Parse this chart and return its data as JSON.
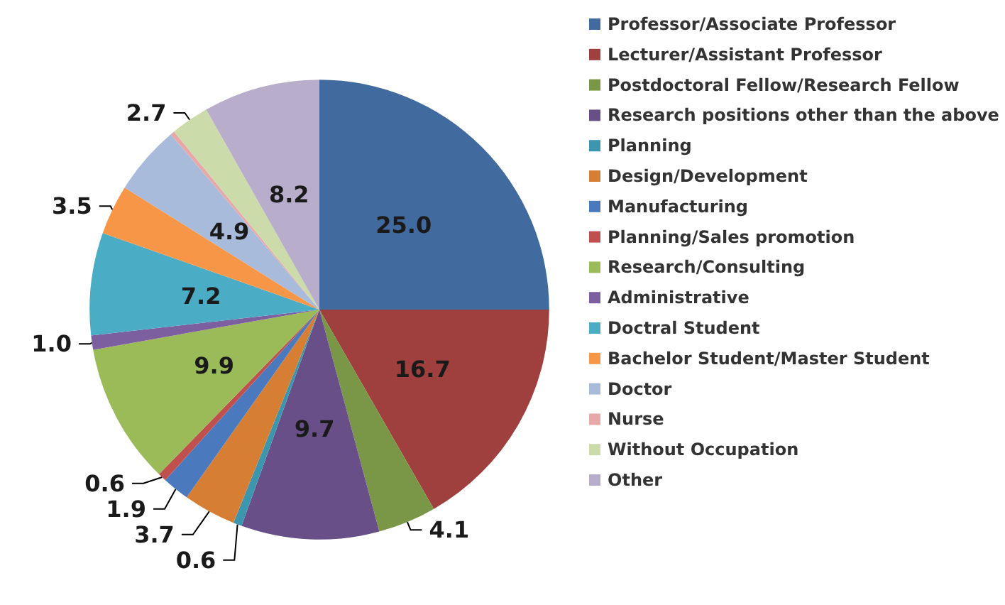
{
  "chart_data": {
    "type": "pie",
    "categories": [
      "Professor/Associate Professor",
      "Lecturer/Assistant Professor",
      "Postdoctoral Fellow/Research Fellow",
      "Research positions other than the above",
      "Planning",
      "Design/Development",
      "Manufacturing",
      "Planning/Sales promotion",
      "Research/Consulting",
      "Administrative",
      "Doctral Student",
      "Bachelor Student/Master Student",
      "Doctor",
      "Nurse",
      "Without Occupation",
      "Other"
    ],
    "values": [
      25.0,
      16.7,
      4.1,
      9.7,
      0.6,
      3.7,
      1.9,
      0.6,
      9.9,
      1.0,
      7.2,
      3.5,
      4.9,
      0.3,
      2.7,
      8.2
    ],
    "value_labels": [
      "25.0",
      "16.7",
      "4.1",
      "9.7",
      "0.6",
      "3.7",
      "1.9",
      "0.6",
      "9.9",
      "1.0",
      "7.2",
      "3.5",
      "4.9",
      null,
      "2.7",
      "8.2"
    ],
    "colors": [
      "#416a9e",
      "#a0403e",
      "#7a9647",
      "#684f87",
      "#3c96ae",
      "#d67f34",
      "#4a79bd",
      "#c0504d",
      "#9bbb59",
      "#7c5f9e",
      "#4bacc6",
      "#f79646",
      "#a9bbdb",
      "#e6a9a8",
      "#ccdbaa",
      "#b9adcc"
    ],
    "legend": "right"
  }
}
